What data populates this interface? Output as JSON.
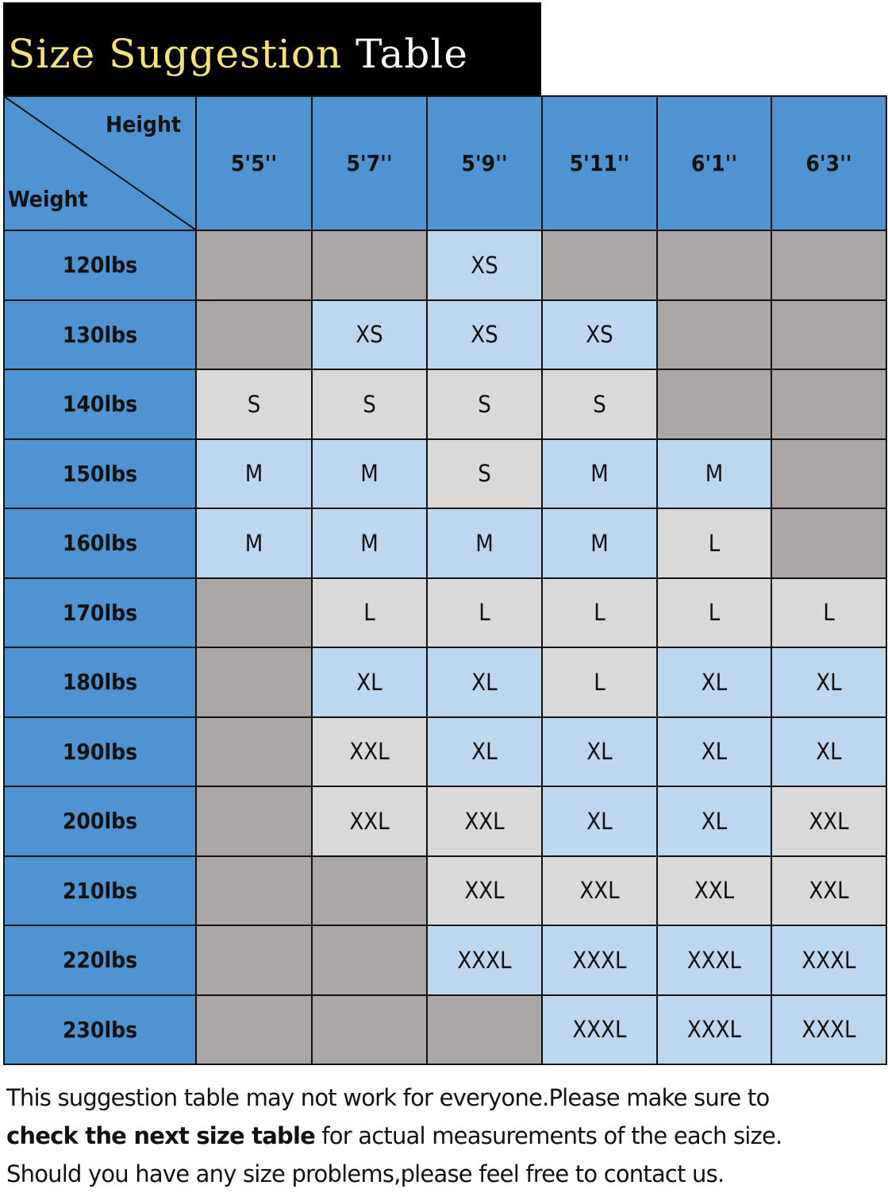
{
  "title": {
    "part1": "Size Suggestion",
    "part2": "Table",
    "part1_color": "#f5e27a",
    "part2_color": "#ffffff"
  },
  "corner": {
    "top_label": "Height",
    "bottom_label": "Weight"
  },
  "heights": [
    "5'5''",
    "5'7''",
    "5'9''",
    "5'11''",
    "6'1''",
    "6'3''"
  ],
  "colors": {
    "header": "#4f93d2",
    "unavailable": "#aba7a7",
    "blue": "#bdd7ee",
    "light": "#d9d9d9"
  },
  "rows": [
    {
      "weight": "120lbs",
      "cells": [
        [
          "",
          "g"
        ],
        [
          "",
          "g"
        ],
        [
          "XS",
          "b"
        ],
        [
          "",
          "g"
        ],
        [
          "",
          "g"
        ],
        [
          "",
          "g"
        ]
      ]
    },
    {
      "weight": "130lbs",
      "cells": [
        [
          "",
          "g"
        ],
        [
          "XS",
          "b"
        ],
        [
          "XS",
          "b"
        ],
        [
          "XS",
          "b"
        ],
        [
          "",
          "g"
        ],
        [
          "",
          "g"
        ]
      ]
    },
    {
      "weight": "140lbs",
      "cells": [
        [
          "S",
          "l"
        ],
        [
          "S",
          "l"
        ],
        [
          "S",
          "l"
        ],
        [
          "S",
          "l"
        ],
        [
          "",
          "g"
        ],
        [
          "",
          "g"
        ]
      ]
    },
    {
      "weight": "150lbs",
      "cells": [
        [
          "M",
          "b"
        ],
        [
          "M",
          "b"
        ],
        [
          "S",
          "l"
        ],
        [
          "M",
          "b"
        ],
        [
          "M",
          "b"
        ],
        [
          "",
          "g"
        ]
      ]
    },
    {
      "weight": "160lbs",
      "cells": [
        [
          "M",
          "b"
        ],
        [
          "M",
          "b"
        ],
        [
          "M",
          "b"
        ],
        [
          "M",
          "b"
        ],
        [
          "L",
          "l"
        ],
        [
          "",
          "g"
        ]
      ]
    },
    {
      "weight": "170lbs",
      "cells": [
        [
          "",
          "g"
        ],
        [
          "L",
          "l"
        ],
        [
          "L",
          "l"
        ],
        [
          "L",
          "l"
        ],
        [
          "L",
          "l"
        ],
        [
          "L",
          "l"
        ]
      ]
    },
    {
      "weight": "180lbs",
      "cells": [
        [
          "",
          "g"
        ],
        [
          "XL",
          "b"
        ],
        [
          "XL",
          "b"
        ],
        [
          "L",
          "l"
        ],
        [
          "XL",
          "b"
        ],
        [
          "XL",
          "b"
        ]
      ]
    },
    {
      "weight": "190lbs",
      "cells": [
        [
          "",
          "g"
        ],
        [
          "XXL",
          "l"
        ],
        [
          "XL",
          "b"
        ],
        [
          "XL",
          "b"
        ],
        [
          "XL",
          "b"
        ],
        [
          "XL",
          "b"
        ]
      ]
    },
    {
      "weight": "200lbs",
      "cells": [
        [
          "",
          "g"
        ],
        [
          "XXL",
          "l"
        ],
        [
          "XXL",
          "l"
        ],
        [
          "XL",
          "b"
        ],
        [
          "XL",
          "b"
        ],
        [
          "XXL",
          "l"
        ]
      ]
    },
    {
      "weight": "210lbs",
      "cells": [
        [
          "",
          "g"
        ],
        [
          "",
          "g"
        ],
        [
          "XXL",
          "l"
        ],
        [
          "XXL",
          "l"
        ],
        [
          "XXL",
          "l"
        ],
        [
          "XXL",
          "l"
        ]
      ]
    },
    {
      "weight": "220lbs",
      "cells": [
        [
          "",
          "g"
        ],
        [
          "",
          "g"
        ],
        [
          "XXXL",
          "b"
        ],
        [
          "XXXL",
          "b"
        ],
        [
          "XXXL",
          "b"
        ],
        [
          "XXXL",
          "b"
        ]
      ]
    },
    {
      "weight": "230lbs",
      "cells": [
        [
          "",
          "g"
        ],
        [
          "",
          "g"
        ],
        [
          "",
          "g"
        ],
        [
          "XXXL",
          "b"
        ],
        [
          "XXXL",
          "b"
        ],
        [
          "XXXL",
          "b"
        ]
      ]
    }
  ],
  "note": {
    "line1": "This suggestion table may not work for everyone.Please make sure to",
    "line2_bold": "check the next size table",
    "line2_rest": " for actual measurements of the each size.",
    "line3": "Should you have any size problems,please feel free to contact us."
  }
}
